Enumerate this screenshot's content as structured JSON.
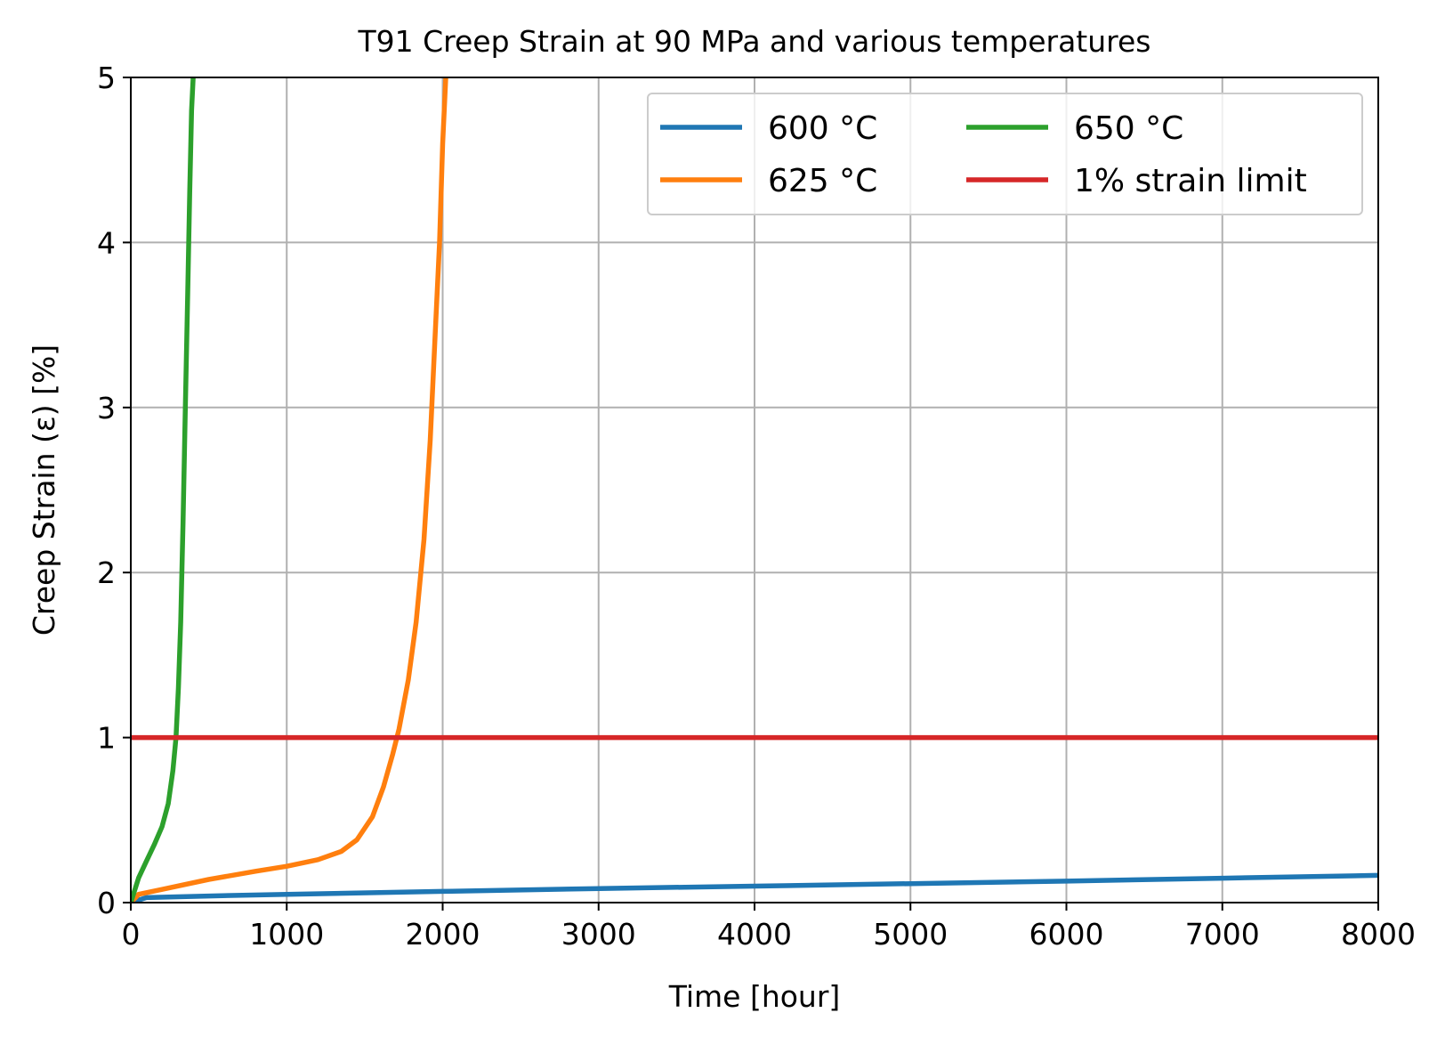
{
  "chart_data": {
    "type": "line",
    "title": "T91 Creep Strain at 90 MPa and various temperatures",
    "xlabel": "Time [hour]",
    "ylabel": "Creep Strain (ε) [%]",
    "xlim": [
      0,
      8000
    ],
    "ylim": [
      0,
      5
    ],
    "xticks": [
      0,
      1000,
      2000,
      3000,
      4000,
      5000,
      6000,
      7000,
      8000
    ],
    "yticks": [
      0,
      1,
      2,
      3,
      4,
      5
    ],
    "grid": true,
    "legend": {
      "placement": "top-right",
      "columns": 2
    },
    "series": [
      {
        "name": "600 °C",
        "color": "#1f77b4",
        "x": [
          0,
          100,
          500,
          1000,
          2000,
          3000,
          4000,
          5000,
          6000,
          7000,
          8000
        ],
        "y": [
          0.0,
          0.03,
          0.04,
          0.05,
          0.068,
          0.085,
          0.1,
          0.115,
          0.13,
          0.148,
          0.165
        ]
      },
      {
        "name": "625 °C",
        "color": "#ff7f0e",
        "x": [
          0,
          50,
          200,
          500,
          800,
          1000,
          1200,
          1350,
          1450,
          1550,
          1620,
          1680,
          1720,
          1780,
          1830,
          1880,
          1920,
          1950,
          1980,
          2000,
          2020
        ],
        "y": [
          0.0,
          0.05,
          0.08,
          0.14,
          0.19,
          0.22,
          0.26,
          0.31,
          0.38,
          0.52,
          0.7,
          0.9,
          1.05,
          1.35,
          1.7,
          2.2,
          2.8,
          3.4,
          4.0,
          4.6,
          5.0
        ]
      },
      {
        "name": "650 °C",
        "color": "#2ca02c",
        "x": [
          0,
          50,
          100,
          150,
          200,
          240,
          270,
          290,
          305,
          320,
          335,
          350,
          365,
          378,
          390,
          400
        ],
        "y": [
          0.0,
          0.15,
          0.25,
          0.35,
          0.46,
          0.6,
          0.8,
          1.0,
          1.3,
          1.7,
          2.3,
          3.0,
          3.7,
          4.3,
          4.8,
          5.0
        ]
      },
      {
        "name": "1% strain limit",
        "color": "#d62728",
        "x": [
          0,
          8000
        ],
        "y": [
          1,
          1
        ]
      }
    ]
  }
}
